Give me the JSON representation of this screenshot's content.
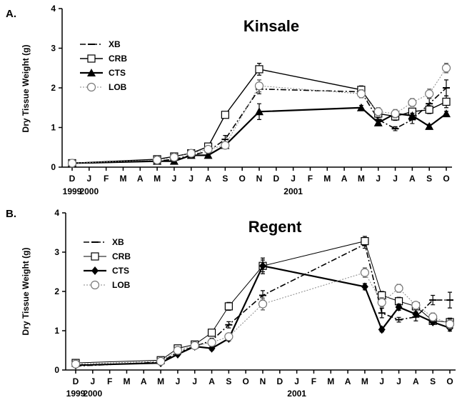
{
  "chart_data": [
    {
      "type": "line",
      "panel_label": "A.",
      "title": "Kinsale",
      "ylabel": "Dry Tissue Weight (g)",
      "xlabel": "",
      "ylim": [
        0,
        4
      ],
      "yticks": [
        0,
        1,
        2,
        3,
        4
      ],
      "months": [
        "D",
        "J",
        "F",
        "M",
        "A",
        "M",
        "J",
        "J",
        "A",
        "S",
        "O",
        "N",
        "D",
        "J",
        "F",
        "M",
        "A",
        "M",
        "J",
        "J",
        "A",
        "S",
        "O"
      ],
      "year_labels": [
        {
          "text": "1999",
          "index": 0
        },
        {
          "text": "2000",
          "index": 1
        },
        {
          "text": "2001",
          "index": 13
        }
      ],
      "legend_position": "top-left",
      "series": [
        {
          "name": "XB",
          "style": "dash-dot",
          "marker": "plus",
          "x": [
            0,
            5,
            6,
            7,
            8,
            9,
            11,
            17,
            18,
            19,
            20,
            21,
            22
          ],
          "y": [
            0.1,
            0.15,
            0.2,
            0.3,
            0.4,
            0.7,
            1.97,
            1.9,
            1.2,
            0.97,
            1.2,
            1.6,
            2.0
          ],
          "err": [
            0.03,
            0.04,
            0.05,
            0.05,
            0.06,
            0.1,
            0.12,
            0.1,
            0.1,
            0.05,
            0.1,
            0.15,
            0.2
          ]
        },
        {
          "name": "CRB",
          "style": "solid",
          "marker": "square",
          "x": [
            0,
            5,
            6,
            7,
            8,
            9,
            11,
            17,
            18,
            19,
            20,
            21,
            22
          ],
          "y": [
            0.1,
            0.2,
            0.27,
            0.35,
            0.52,
            1.32,
            2.47,
            1.95,
            1.35,
            1.28,
            1.4,
            1.45,
            1.65
          ],
          "err": [
            0.03,
            0.04,
            0.05,
            0.05,
            0.06,
            0.08,
            0.15,
            0.1,
            0.1,
            0.1,
            0.08,
            0.1,
            0.15
          ]
        },
        {
          "name": "CTS",
          "style": "solid-thick",
          "marker": "triangle",
          "x": [
            0,
            5,
            6,
            7,
            8,
            9,
            11,
            17,
            18,
            19,
            20,
            21,
            22
          ],
          "y": [
            0.1,
            0.15,
            0.15,
            0.3,
            0.3,
            0.55,
            1.4,
            1.5,
            1.12,
            1.35,
            1.3,
            1.03,
            1.35
          ],
          "err": [
            0.03,
            0.03,
            0.04,
            0.05,
            0.05,
            0.06,
            0.2,
            0.06,
            0.06,
            0.1,
            0.06,
            0.05,
            0.06
          ]
        },
        {
          "name": "LOB",
          "style": "dotted",
          "marker": "circle",
          "x": [
            0,
            5,
            6,
            7,
            8,
            9,
            11,
            17,
            18,
            19,
            20,
            21,
            22
          ],
          "y": [
            0.1,
            0.18,
            0.25,
            0.35,
            0.45,
            0.55,
            2.05,
            1.85,
            1.4,
            1.35,
            1.63,
            1.85,
            2.5
          ],
          "err": [
            0.03,
            0.04,
            0.05,
            0.05,
            0.06,
            0.06,
            0.15,
            0.1,
            0.1,
            0.1,
            0.1,
            0.12,
            0.12
          ]
        }
      ]
    },
    {
      "type": "line",
      "panel_label": "B.",
      "title": "Regent",
      "ylabel": "Dry Tissue Weight (g)",
      "xlabel": "",
      "ylim": [
        0,
        4
      ],
      "yticks": [
        0,
        1,
        2,
        3,
        4
      ],
      "months": [
        "D",
        "J",
        "F",
        "M",
        "A",
        "M",
        "J",
        "J",
        "A",
        "S",
        "O",
        "N",
        "D",
        "J",
        "F",
        "M",
        "A",
        "M",
        "J",
        "J",
        "A",
        "S",
        "O"
      ],
      "year_labels": [
        {
          "text": "1999",
          "index": 0
        },
        {
          "text": "2000",
          "index": 1
        },
        {
          "text": "2001",
          "index": 13
        }
      ],
      "legend_position": "top-left",
      "series": [
        {
          "name": "XB",
          "style": "dash-dot",
          "marker": "plus",
          "x": [
            0,
            5,
            6,
            7,
            8,
            9,
            11,
            17,
            18,
            19,
            20,
            21,
            22
          ],
          "y": [
            0.1,
            0.2,
            0.45,
            0.6,
            0.75,
            1.15,
            1.9,
            3.2,
            1.45,
            1.28,
            1.35,
            1.78,
            1.78
          ],
          "err": [
            0.03,
            0.04,
            0.05,
            0.05,
            0.06,
            0.08,
            0.12,
            0.1,
            0.12,
            0.06,
            0.1,
            0.12,
            0.2
          ]
        },
        {
          "name": "CRB",
          "style": "solid-thin",
          "marker": "square",
          "x": [
            0,
            5,
            6,
            7,
            8,
            9,
            11,
            17,
            18,
            19,
            20,
            21,
            22
          ],
          "y": [
            0.18,
            0.25,
            0.55,
            0.65,
            0.95,
            1.62,
            2.65,
            3.28,
            1.9,
            1.75,
            1.62,
            1.25,
            1.22
          ],
          "err": [
            0.03,
            0.04,
            0.05,
            0.05,
            0.06,
            0.1,
            0.15,
            0.12,
            0.1,
            0.1,
            0.08,
            0.08,
            0.1
          ]
        },
        {
          "name": "CTS",
          "style": "solid-thick",
          "marker": "diamond",
          "x": [
            0,
            5,
            6,
            7,
            8,
            9,
            11,
            17,
            18,
            19,
            20,
            21,
            22
          ],
          "y": [
            0.12,
            0.18,
            0.4,
            0.6,
            0.55,
            0.8,
            2.65,
            2.12,
            1.03,
            1.6,
            1.42,
            1.22,
            1.07
          ],
          "err": [
            0.03,
            0.03,
            0.04,
            0.05,
            0.05,
            0.06,
            0.2,
            0.08,
            0.06,
            0.08,
            0.06,
            0.06,
            0.08
          ]
        },
        {
          "name": "LOB",
          "style": "dotted",
          "marker": "circle",
          "x": [
            0,
            5,
            6,
            7,
            8,
            9,
            11,
            17,
            18,
            19,
            20,
            21,
            22
          ],
          "y": [
            0.15,
            0.22,
            0.5,
            0.62,
            0.7,
            0.85,
            1.68,
            2.48,
            1.72,
            2.08,
            1.65,
            1.35,
            1.17
          ],
          "err": [
            0.03,
            0.04,
            0.05,
            0.05,
            0.05,
            0.06,
            0.15,
            0.12,
            0.12,
            0.1,
            0.08,
            0.1,
            0.12
          ]
        }
      ]
    }
  ]
}
